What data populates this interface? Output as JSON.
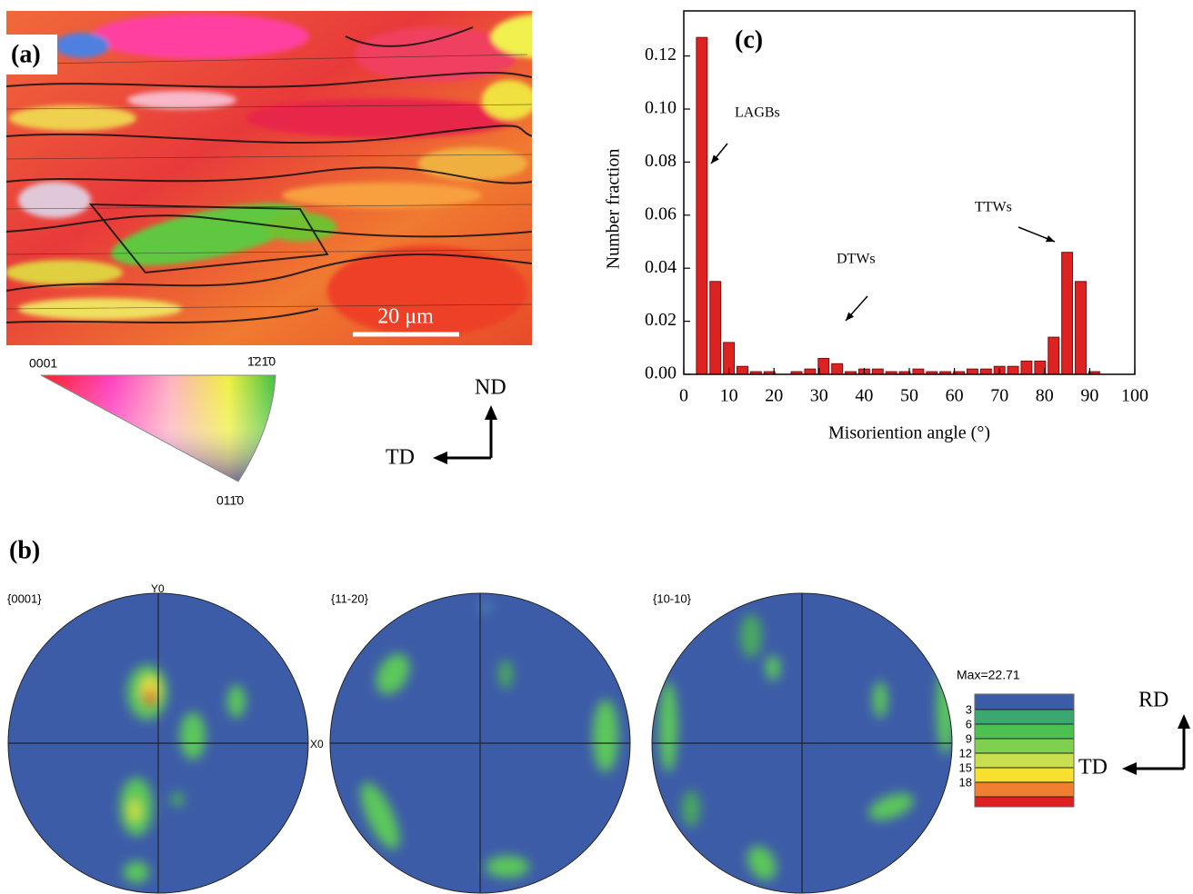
{
  "panel_a": {
    "label": "(a)",
    "scale_bar": "20 μm",
    "key": {
      "corner_top_left": "0001",
      "corner_top_right": "1̄21̄0",
      "corner_bottom": "011̄0"
    },
    "axes": {
      "up": "ND",
      "left": "TD"
    }
  },
  "panel_b": {
    "label": "(b)",
    "figures": [
      "{0001}",
      "{11-20}",
      "{10-10}"
    ],
    "axis_y": "Y0",
    "axis_x": "X0",
    "scale": {
      "max_label": "Max=22.71",
      "levels": [
        "3",
        "6",
        "9",
        "12",
        "15",
        "18"
      ]
    },
    "axes": {
      "up": "RD",
      "left": "TD"
    }
  },
  "chart_data": {
    "type": "bar",
    "label": "(c)",
    "x_label": "Misoriention angle (°)",
    "y_label": "Number fraction",
    "x": [
      4,
      7,
      10,
      13,
      16,
      19,
      22,
      25,
      28,
      31,
      34,
      37,
      40,
      43,
      46,
      49,
      52,
      55,
      58,
      61,
      64,
      67,
      70,
      73,
      76,
      79,
      82,
      85,
      88,
      91
    ],
    "values": [
      0.127,
      0.035,
      0.012,
      0.003,
      0.001,
      0.001,
      0,
      0.001,
      0.002,
      0.006,
      0.004,
      0.001,
      0.002,
      0.002,
      0.001,
      0.001,
      0.002,
      0.001,
      0.001,
      0.001,
      0.002,
      0.002,
      0.003,
      0.003,
      0.005,
      0.005,
      0.014,
      0.046,
      0.035,
      0.001
    ],
    "color": "#dd2222",
    "xlim": [
      0,
      100
    ],
    "xticks": [
      0,
      10,
      20,
      30,
      40,
      50,
      60,
      70,
      80,
      90,
      100
    ],
    "ylim": [
      0,
      0.137
    ],
    "yticks": [
      {
        "value": 0,
        "label": "0.00"
      },
      {
        "value": 0.02,
        "label": "0.02"
      },
      {
        "value": 0.04,
        "label": "0.04"
      },
      {
        "value": 0.06,
        "label": "0.06"
      },
      {
        "value": 0.08,
        "label": "0.08"
      },
      {
        "value": 0.1,
        "label": "0.10"
      },
      {
        "value": 0.12,
        "label": "0.12"
      }
    ],
    "annotations": [
      "LAGBs",
      "DTWs",
      "TTWs"
    ]
  }
}
